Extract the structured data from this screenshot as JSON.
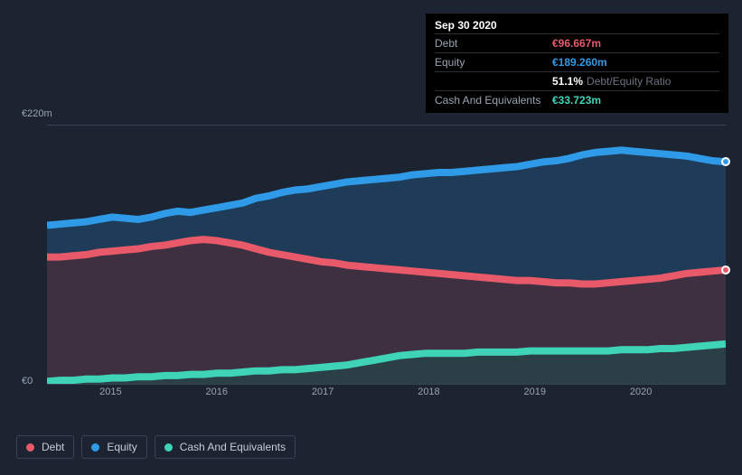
{
  "tooltip": {
    "date": "Sep 30 2020",
    "rows": [
      {
        "label": "Debt",
        "value": "€96.667m",
        "color": "#e85a6a"
      },
      {
        "label": "Equity",
        "value": "€189.260m",
        "color": "#2f9ae8"
      },
      {
        "label": "",
        "value": "51.1%",
        "suffix": "Debt/Equity Ratio",
        "color": "#ffffff"
      },
      {
        "label": "Cash And Equivalents",
        "value": "€33.723m",
        "color": "#3fd4b8"
      }
    ]
  },
  "chart": {
    "type": "area",
    "background_color": "#1c2431",
    "grid_color": "#3a4353",
    "label_color": "#9aa3b2",
    "label_fontsize": 11,
    "y_top_label": "€220m",
    "y_bottom_label": "€0",
    "ylim": [
      0,
      220
    ],
    "x_labels": [
      "2015",
      "2016",
      "2017",
      "2018",
      "2019",
      "2020"
    ],
    "x_range": [
      2014.4,
      2020.8
    ],
    "series": [
      {
        "name": "Equity",
        "stroke": "#2f9ae8",
        "fill": "#1e3f5f",
        "fill_opacity": 0.85,
        "line_width": 2,
        "y": [
          135,
          136,
          137,
          138,
          140,
          142,
          141,
          140,
          142,
          145,
          147,
          146,
          148,
          150,
          152,
          154,
          158,
          160,
          163,
          165,
          166,
          168,
          170,
          172,
          173,
          174,
          175,
          176,
          178,
          179,
          180,
          180,
          181,
          182,
          183,
          184,
          185,
          187,
          189,
          190,
          192,
          195,
          197,
          198,
          199,
          198,
          197,
          196,
          195,
          194,
          192,
          190,
          189
        ],
        "end_marker": true
      },
      {
        "name": "Debt",
        "stroke": "#e85a6a",
        "fill": "#4a2d3a",
        "fill_opacity": 0.75,
        "line_width": 2,
        "y": [
          108,
          108,
          109,
          110,
          112,
          113,
          114,
          115,
          117,
          118,
          120,
          122,
          123,
          122,
          120,
          118,
          115,
          112,
          110,
          108,
          106,
          104,
          103,
          101,
          100,
          99,
          98,
          97,
          96,
          95,
          94,
          93,
          92,
          91,
          90,
          89,
          88,
          88,
          87,
          86,
          86,
          85,
          85,
          86,
          87,
          88,
          89,
          90,
          92,
          94,
          95,
          96,
          97
        ],
        "end_marker": true
      },
      {
        "name": "Cash And Equivalents",
        "stroke": "#3fd4b8",
        "fill": "#254447",
        "fill_opacity": 0.8,
        "line_width": 2,
        "y": [
          2,
          3,
          3,
          4,
          4,
          5,
          5,
          6,
          6,
          7,
          7,
          8,
          8,
          9,
          9,
          10,
          11,
          11,
          12,
          12,
          13,
          14,
          15,
          16,
          18,
          20,
          22,
          24,
          25,
          26,
          26,
          26,
          26,
          27,
          27,
          27,
          27,
          28,
          28,
          28,
          28,
          28,
          28,
          28,
          29,
          29,
          29,
          30,
          30,
          31,
          32,
          33,
          34
        ],
        "end_marker": false
      }
    ],
    "legend": [
      {
        "label": "Debt",
        "color": "#e85a6a"
      },
      {
        "label": "Equity",
        "color": "#2f9ae8"
      },
      {
        "label": "Cash And Equivalents",
        "color": "#3fd4b8"
      }
    ]
  }
}
